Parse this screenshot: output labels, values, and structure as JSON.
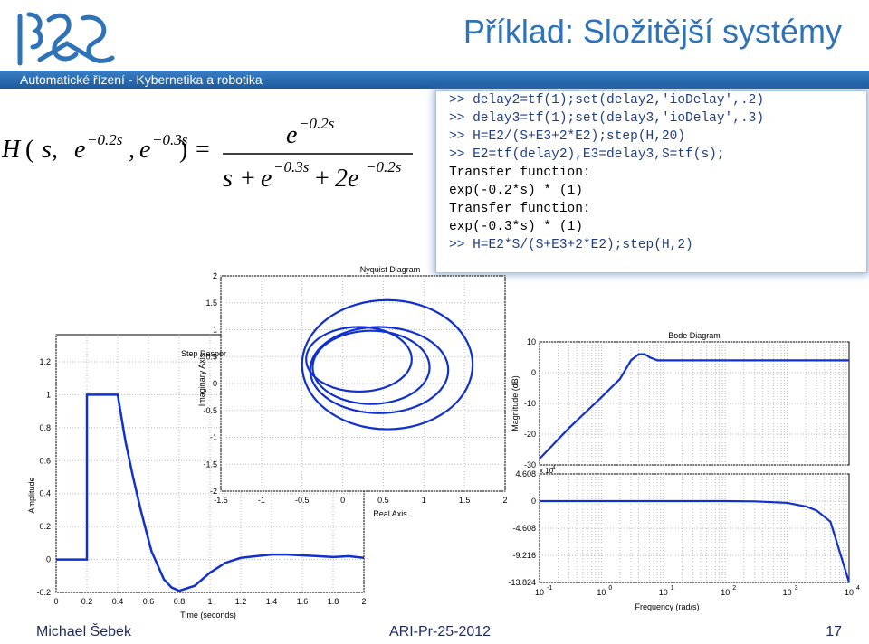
{
  "header": {
    "title": "Příklad: Složitější systémy",
    "subtitle": "Automatické řízení - Kybernetika a robotika",
    "brand_color": "#2e73b8"
  },
  "formula": {
    "lhs": "H(s, e^{-0.2s}, e^{-0.3s}) =",
    "numerator": "e^{-0.2s}",
    "denominator": "s + e^{-0.3s} + 2e^{-0.2s}",
    "parts": {
      "H": "H",
      "open": "(",
      "s": "s,",
      "e1": "e",
      "exp1": "−0.2s",
      "comma": ",",
      "e2": "e",
      "exp2": "−0.3s",
      "close": ")",
      "eq": "=",
      "num_e": "e",
      "num_exp": "−0.2s",
      "den_s": "s",
      "den_plus1": "+",
      "den_e": "e",
      "den_exp1": "−0.3s",
      "den_plus2": "+",
      "den_2e": "2e",
      "den_exp2": "−0.2s"
    }
  },
  "console": {
    "lines": [
      {
        "text": ">> delay2=tf(1);set(delay2,'ioDelay',.2)",
        "kind": "cmd"
      },
      {
        "text": ">> delay3=tf(1);set(delay3,'ioDelay',.3)",
        "kind": "cmd"
      },
      {
        "text": ">> H=E2/(S+E3+2*E2);step(H,20)",
        "kind": "cmd"
      },
      {
        "text": ">> E2=tf(delay2),E3=delay3,S=tf(s);",
        "kind": "cmd"
      },
      {
        "text": "Transfer function:",
        "kind": "out"
      },
      {
        "text": "exp(-0.2*s) * (1)",
        "kind": "out"
      },
      {
        "text": "Transfer function:",
        "kind": "out"
      },
      {
        "text": "exp(-0.3*s) * (1)",
        "kind": "out"
      },
      {
        "text": ">> H=E2*S/(S+E3+2*E2);step(H,2)",
        "kind": "cmd"
      }
    ]
  },
  "chart_data": [
    {
      "type": "line",
      "title": "Step Respor",
      "xlabel": "Time (seconds)",
      "ylabel": "Amplitude",
      "xlim": [
        0,
        2
      ],
      "ylim": [
        -0.2,
        1.2
      ],
      "xticks": [
        "0",
        "0.2",
        "0.4",
        "0.6",
        "0.8",
        "1",
        "1.2",
        "1.4",
        "1.6",
        "1.8",
        "2"
      ],
      "yticks": [
        "-0.2",
        "0",
        "0.2",
        "0.4",
        "0.6",
        "0.8",
        "1",
        "1.2"
      ],
      "grid": true,
      "series": [
        {
          "x": [
            0,
            0.2,
            0.2,
            0.4,
            0.45,
            0.5,
            0.55,
            0.6,
            0.62,
            0.7,
            0.75,
            0.8,
            0.9,
            1.0,
            1.1,
            1.2,
            1.3,
            1.4,
            1.5,
            1.6,
            1.7,
            1.8,
            1.9,
            2.0
          ],
          "y": [
            0,
            0,
            1,
            1,
            0.72,
            0.5,
            0.3,
            0.12,
            0.05,
            -0.12,
            -0.17,
            -0.19,
            -0.16,
            -0.08,
            -0.02,
            0.01,
            0.02,
            0.03,
            0.03,
            0.025,
            0.02,
            0.015,
            0.02,
            0.01
          ]
        }
      ]
    },
    {
      "type": "line",
      "title": "Nyquist Diagram",
      "xlabel": "Real Axis",
      "ylabel": "Imaginary Axis",
      "xlim": [
        -1.5,
        2
      ],
      "ylim": [
        -2,
        2
      ],
      "xticks": [
        "-1.5",
        "-1",
        "-0.5",
        "0",
        "0.5",
        "1",
        "1.5",
        "2"
      ],
      "yticks": [
        "-2",
        "-1.5",
        "-1",
        "-0.5",
        "0",
        "0.5",
        "1",
        "1.5",
        "2"
      ],
      "grid": true,
      "loops": [
        {
          "cx": 0.55,
          "cy": 0.35,
          "rx": 1.05,
          "ry": 1.2
        },
        {
          "cx": 0.2,
          "cy": 0.45,
          "rx": 0.65,
          "ry": 0.6
        },
        {
          "cx": 0.45,
          "cy": 0.25,
          "rx": 0.85,
          "ry": 0.8
        },
        {
          "cx": 0.35,
          "cy": 0.3,
          "rx": 0.72,
          "ry": 0.68
        }
      ]
    },
    {
      "type": "line",
      "title": "Bode Diagram",
      "xlabel": "Frequency  (rad/s)",
      "ylabel": "Magnitude (dB)",
      "xscale": "log",
      "xlim": [
        0.1,
        10000
      ],
      "mag_ylim": [
        -30,
        10
      ],
      "mag_yticks": [
        "10",
        "0",
        "-10",
        "-20",
        "-30"
      ],
      "phase_ylim": [
        -13.824,
        4.608
      ],
      "phase_yticks": [
        "4.608",
        "0",
        "-4.608",
        "-9.216",
        "-13.824"
      ],
      "phase_scale_label": "x 10",
      "phase_scale_exp": "4",
      "xticks": [
        {
          "base": "10",
          "exp": "-1"
        },
        {
          "base": "10",
          "exp": "0"
        },
        {
          "base": "10",
          "exp": "1"
        },
        {
          "base": "10",
          "exp": "2"
        },
        {
          "base": "10",
          "exp": "3"
        },
        {
          "base": "10",
          "exp": "4"
        }
      ],
      "grid": true,
      "magnitude": {
        "x": [
          0.1,
          0.3,
          1,
          2,
          3,
          4,
          5,
          6,
          8,
          10,
          20,
          50,
          100,
          1000,
          10000
        ],
        "y": [
          -28,
          -18,
          -8,
          -2,
          4,
          6,
          6,
          5,
          4,
          4,
          4,
          4,
          4,
          4,
          4
        ]
      },
      "phase": {
        "x": [
          0.1,
          10,
          100,
          300,
          1000,
          2000,
          3000,
          5000,
          10000
        ],
        "y": [
          0,
          0,
          0,
          -0.05,
          -0.3,
          -0.9,
          -1.6,
          -3.5,
          -13.8
        ]
      }
    }
  ],
  "footer": {
    "author": "Michael Šebek",
    "code": "ARI-Pr-25-2012",
    "page": "17"
  }
}
